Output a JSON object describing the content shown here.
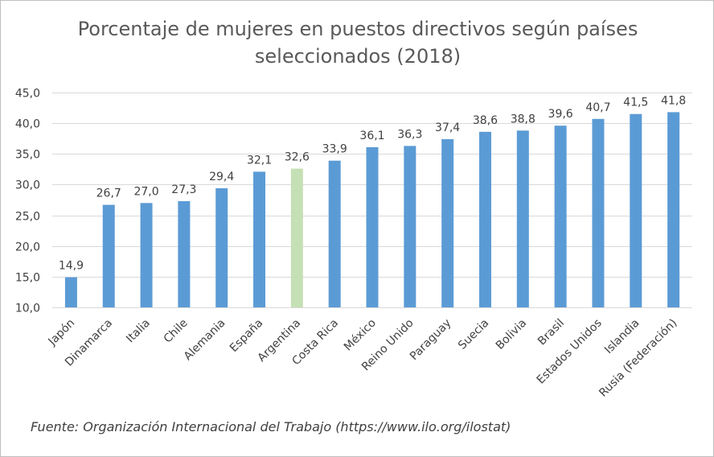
{
  "chart_data": {
    "type": "bar",
    "title_lines": [
      "Porcentaje de mujeres en puestos directivos según países",
      "seleccionados (2018)"
    ],
    "categories": [
      "Japón",
      "Dinamarca",
      "Italia",
      "Chile",
      "Alemania",
      "España",
      "Argentina",
      "Costa Rica",
      "México",
      "Reino Unido",
      "Paraguay",
      "Suecia",
      "Bolivia",
      "Brasil",
      "Estados Unidos",
      "Islandia",
      "Rusia (Federación)"
    ],
    "values": [
      14.9,
      26.7,
      27.0,
      27.3,
      29.4,
      32.1,
      32.6,
      33.9,
      36.1,
      36.3,
      37.4,
      38.6,
      38.8,
      39.6,
      40.7,
      41.5,
      41.8
    ],
    "value_labels": [
      "14,9",
      "26,7",
      "27,0",
      "27,3",
      "29,4",
      "32,1",
      "32,6",
      "33,9",
      "36,1",
      "36,3",
      "37,4",
      "38,6",
      "38,8",
      "39,6",
      "40,7",
      "41,5",
      "41,8"
    ],
    "y_ticks": [
      "10,0",
      "15,0",
      "20,0",
      "25,0",
      "30,0",
      "35,0",
      "40,0",
      "45,0"
    ],
    "ylim": [
      10,
      45
    ],
    "ystep": 5,
    "grid": true,
    "bar_color": "#5b9bd5",
    "highlight_category": "Argentina",
    "highlight_color": "#c5e0b4",
    "source": "Fuente: Organización Internacional del Trabajo (https://www.ilo.org/ilostat)"
  }
}
